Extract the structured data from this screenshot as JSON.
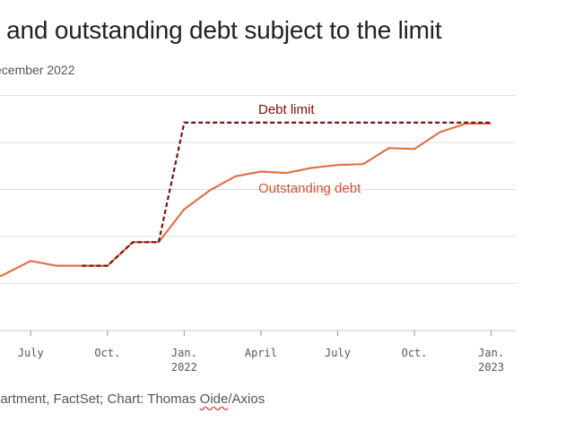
{
  "title_visible": "it and outstanding debt subject to the limit",
  "subtitle_visible": "ecember 2022",
  "source": {
    "prefix": "partment, FactSet; Chart: Thomas ",
    "underlined": "Oide",
    "suffix": "/Axios"
  },
  "colors": {
    "debt_limit": "#7a1212",
    "outstanding_debt": "#e0714a",
    "grid": "#dddddd"
  },
  "chart_data": {
    "type": "line",
    "x_ticks": [
      {
        "value": 2021.5,
        "label": "July",
        "sublabel": ""
      },
      {
        "value": 2021.75,
        "label": "Oct.",
        "sublabel": ""
      },
      {
        "value": 2022.0,
        "label": "Jan.",
        "sublabel": "2022"
      },
      {
        "value": 2022.25,
        "label": "April",
        "sublabel": ""
      },
      {
        "value": 2022.5,
        "label": "July",
        "sublabel": ""
      },
      {
        "value": 2022.75,
        "label": "Oct.",
        "sublabel": ""
      },
      {
        "value": 2023.0,
        "label": "Jan.",
        "sublabel": "2023"
      }
    ],
    "xlim": [
      2021.4,
      2023.08
    ],
    "ylim": [
      0,
      6
    ],
    "gridlines_y": [
      1,
      2,
      3,
      4,
      5
    ],
    "grid": true,
    "series": [
      {
        "name": "Debt limit",
        "style": "dashed",
        "points": [
          [
            2021.667,
            1.38
          ],
          [
            2021.75,
            1.38
          ],
          [
            2021.833,
            1.88
          ],
          [
            2021.917,
            1.88
          ],
          [
            2022.0,
            4.42
          ],
          [
            2023.0,
            4.42
          ]
        ]
      },
      {
        "name": "Outstanding debt",
        "style": "solid",
        "points": [
          [
            2021.4,
            1.15
          ],
          [
            2021.5,
            1.48
          ],
          [
            2021.583,
            1.38
          ],
          [
            2021.667,
            1.38
          ],
          [
            2021.75,
            1.38
          ],
          [
            2021.833,
            1.88
          ],
          [
            2021.917,
            1.88
          ],
          [
            2022.0,
            2.58
          ],
          [
            2022.083,
            2.98
          ],
          [
            2022.167,
            3.28
          ],
          [
            2022.25,
            3.38
          ],
          [
            2022.333,
            3.35
          ],
          [
            2022.417,
            3.46
          ],
          [
            2022.5,
            3.52
          ],
          [
            2022.583,
            3.54
          ],
          [
            2022.667,
            3.88
          ],
          [
            2022.75,
            3.86
          ],
          [
            2022.833,
            4.22
          ],
          [
            2022.917,
            4.4
          ],
          [
            2023.0,
            4.4
          ]
        ]
      }
    ]
  }
}
